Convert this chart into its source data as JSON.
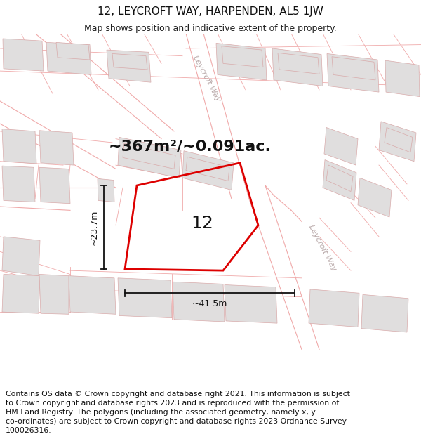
{
  "title": "12, LEYCROFT WAY, HARPENDEN, AL5 1JW",
  "subtitle": "Map shows position and indicative extent of the property.",
  "area_label": "~367m²/~0.091ac.",
  "property_number": "12",
  "dim_width": "~41.5m",
  "dim_height": "~23.7m",
  "footer_lines": [
    "Contains OS data © Crown copyright and database right 2021. This information is subject",
    "to Crown copyright and database rights 2023 and is reproduced with the permission of",
    "HM Land Registry. The polygons (including the associated geometry, namely x, y",
    "co-ordinates) are subject to Crown copyright and database rights 2023 Ordnance Survey",
    "100026316."
  ],
  "bg_color": "#ffffff",
  "road_line_color": "#f0aaaa",
  "building_fc": "#e0dede",
  "building_ec": "#d8aaaa",
  "plot_color": "#dd0000",
  "dim_color": "#111111",
  "street_name": "Leycroft Way",
  "street_color": "#b8a8a8",
  "title_fontsize": 11,
  "subtitle_fontsize": 9,
  "area_fontsize": 16,
  "num_fontsize": 18,
  "dim_fontsize": 9,
  "street_fontsize": 8,
  "footer_fontsize": 7.8
}
